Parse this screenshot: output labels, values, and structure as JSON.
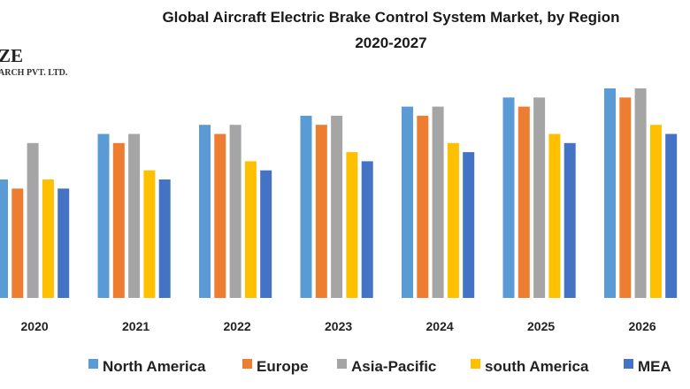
{
  "chart_data": {
    "type": "bar",
    "title": "Global Aircraft Electric Brake Control System Market, by Region",
    "subtitle": "2020-2027",
    "xlabel": "",
    "ylabel": "",
    "categories": [
      "2020",
      "2021",
      "2022",
      "2023",
      "2024",
      "2025",
      "2026"
    ],
    "ylim": [
      0,
      240
    ],
    "grid": false,
    "legend_position": "bottom",
    "series": [
      {
        "name": "North America",
        "color": "#5B9BD5",
        "values": [
          130,
          180,
          190,
          200,
          210,
          220,
          230
        ]
      },
      {
        "name": "Europe",
        "color": "#ED7D31",
        "values": [
          120,
          170,
          180,
          190,
          200,
          210,
          220
        ]
      },
      {
        "name": "Asia-Pacific",
        "color": "#A5A5A5",
        "values": [
          170,
          180,
          190,
          200,
          210,
          220,
          230
        ]
      },
      {
        "name": "south America",
        "color": "#FFC000",
        "values": [
          130,
          140,
          150,
          160,
          170,
          180,
          190
        ]
      },
      {
        "name": "MEA",
        "color": "#4472C4",
        "values": [
          120,
          130,
          140,
          150,
          160,
          170,
          180
        ]
      }
    ]
  },
  "logo": {
    "line1": "ZE",
    "line2": "ARCH PVT. LTD."
  }
}
